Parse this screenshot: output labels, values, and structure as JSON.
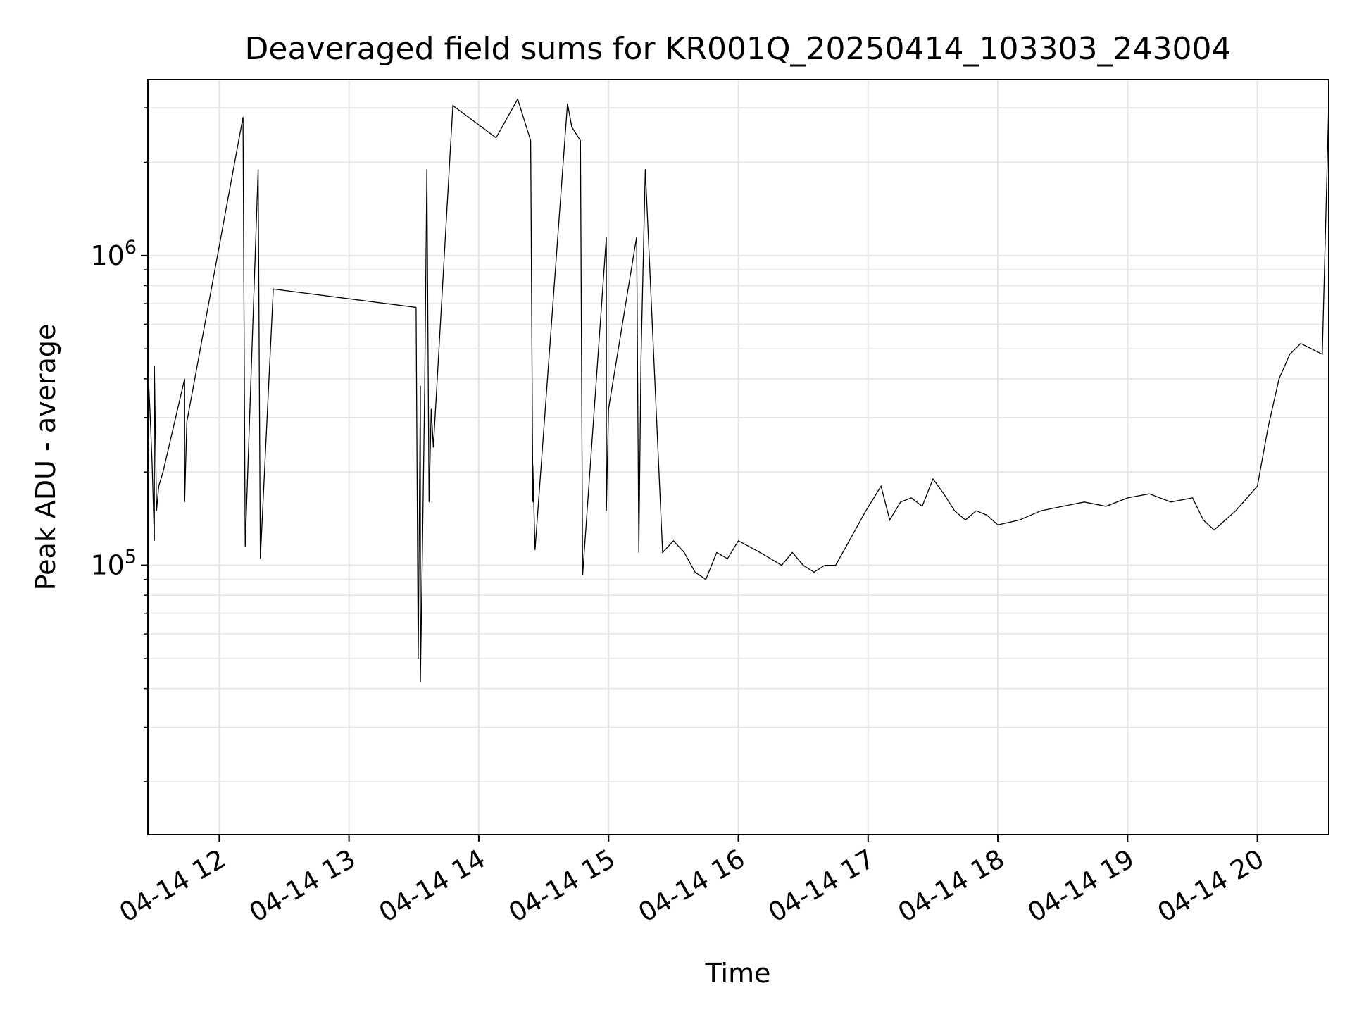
{
  "chart_data": {
    "type": "line",
    "title": "Deaveraged field sums for KR001Q_20250414_103303_243004",
    "xlabel": "Time",
    "ylabel": "Peak ADU - average",
    "y_scale": "log",
    "grid": true,
    "legend": "none",
    "xlim": [
      "2025-04-14 11:27",
      "2025-04-14 20:33"
    ],
    "ylim": [
      13500,
      3700000
    ],
    "x_ticks": [
      {
        "value": "2025-04-14 12:00",
        "label": "04-14 12"
      },
      {
        "value": "2025-04-14 13:00",
        "label": "04-14 13"
      },
      {
        "value": "2025-04-14 14:00",
        "label": "04-14 14"
      },
      {
        "value": "2025-04-14 15:00",
        "label": "04-14 15"
      },
      {
        "value": "2025-04-14 16:00",
        "label": "04-14 16"
      },
      {
        "value": "2025-04-14 17:00",
        "label": "04-14 17"
      },
      {
        "value": "2025-04-14 18:00",
        "label": "04-14 18"
      },
      {
        "value": "2025-04-14 19:00",
        "label": "04-14 19"
      },
      {
        "value": "2025-04-14 20:00",
        "label": "04-14 20"
      }
    ],
    "y_ticks": [
      {
        "value": 100000,
        "base": "10",
        "exp": "5"
      },
      {
        "value": 1000000,
        "base": "10",
        "exp": "6"
      }
    ],
    "line_color": "#000000",
    "grid_color": "#e5e5e5",
    "series": [
      {
        "x": [
          "2025-04-14 11:27",
          "2025-04-14 11:28",
          "2025-04-14 11:29",
          "2025-04-14 11:30",
          "2025-04-14 11:30",
          "2025-04-14 11:31",
          "2025-04-14 11:32",
          "2025-04-14 11:34",
          "2025-04-14 11:44",
          "2025-04-14 11:44",
          "2025-04-14 11:45",
          "2025-04-14 12:11",
          "2025-04-14 12:12",
          "2025-04-14 12:18",
          "2025-04-14 12:19",
          "2025-04-14 12:25",
          "2025-04-14 13:31",
          "2025-04-14 13:32",
          "2025-04-14 13:33",
          "2025-04-14 13:33",
          "2025-04-14 13:34",
          "2025-04-14 13:35",
          "2025-04-14 13:36",
          "2025-04-14 13:37",
          "2025-04-14 13:38",
          "2025-04-14 13:39",
          "2025-04-14 13:48",
          "2025-04-14 14:08",
          "2025-04-14 14:18",
          "2025-04-14 14:24",
          "2025-04-14 14:25",
          "2025-04-14 14:25",
          "2025-04-14 14:26",
          "2025-04-14 14:41",
          "2025-04-14 14:43",
          "2025-04-14 14:47",
          "2025-04-14 14:48",
          "2025-04-14 14:59",
          "2025-04-14 14:59",
          "2025-04-14 15:00",
          "2025-04-14 15:13",
          "2025-04-14 15:14",
          "2025-04-14 15:15"
        ],
        "y": [
          440000,
          310000,
          210000,
          120000,
          440000,
          150000,
          180000,
          200000,
          400000,
          160000,
          290000,
          2800000,
          115000,
          1900000,
          105000,
          780000,
          680000,
          50000,
          380000,
          42000,
          120000,
          370000,
          1900000,
          160000,
          320000,
          240000,
          3050000,
          2400000,
          3200000,
          2350000,
          160000,
          210000,
          112000,
          3100000,
          2600000,
          2350000,
          93000,
          1150000,
          150000,
          320000,
          1150000,
          110000,
          460000
        ]
      },
      {
        "x": [
          "2025-04-14 15:17",
          "2025-04-14 15:25",
          "2025-04-14 15:30",
          "2025-04-14 15:35",
          "2025-04-14 15:40",
          "2025-04-14 15:45",
          "2025-04-14 15:50",
          "2025-04-14 15:55",
          "2025-04-14 16:00",
          "2025-04-14 16:05",
          "2025-04-14 16:10",
          "2025-04-14 16:15",
          "2025-04-14 16:20",
          "2025-04-14 16:25",
          "2025-04-14 16:30",
          "2025-04-14 16:35",
          "2025-04-14 16:40",
          "2025-04-14 16:45",
          "2025-04-14 16:59",
          "2025-04-14 17:06",
          "2025-04-14 17:10",
          "2025-04-14 17:15",
          "2025-04-14 17:20",
          "2025-04-14 17:25",
          "2025-04-14 17:30",
          "2025-04-14 17:35",
          "2025-04-14 17:40",
          "2025-04-14 17:45",
          "2025-04-14 17:50",
          "2025-04-14 17:55",
          "2025-04-14 18:00",
          "2025-04-14 18:10",
          "2025-04-14 18:20",
          "2025-04-14 18:30",
          "2025-04-14 18:40",
          "2025-04-14 18:50",
          "2025-04-14 19:00",
          "2025-04-14 19:10",
          "2025-04-14 19:20",
          "2025-04-14 19:30",
          "2025-04-14 19:35",
          "2025-04-14 19:40",
          "2025-04-14 19:50",
          "2025-04-14 20:00",
          "2025-04-14 20:05",
          "2025-04-14 20:10",
          "2025-04-14 20:15",
          "2025-04-14 20:20",
          "2025-04-14 20:25",
          "2025-04-14 20:30",
          "2025-04-14 20:33"
        ],
        "y": [
          1900000,
          110000,
          120000,
          110000,
          95000,
          90000,
          110000,
          105000,
          120000,
          115000,
          110000,
          105000,
          100000,
          110000,
          100000,
          95000,
          100000,
          100000,
          150000,
          180000,
          140000,
          160000,
          165000,
          155000,
          190000,
          170000,
          150000,
          140000,
          150000,
          145000,
          135000,
          140000,
          150000,
          155000,
          160000,
          155000,
          165000,
          170000,
          160000,
          165000,
          140000,
          130000,
          150000,
          180000,
          280000,
          400000,
          480000,
          520000,
          500000,
          480000,
          3100000
        ]
      }
    ]
  }
}
